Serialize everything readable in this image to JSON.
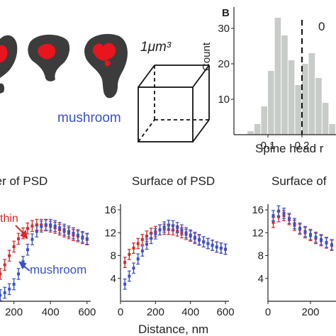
{
  "panel_label": "B",
  "cube_label": "1μm³",
  "mushroom_label": "mushroom",
  "thin_label": "thin",
  "mushroom_label_2": "mushroom",
  "colors": {
    "thin": "#d42a2a",
    "mushroom": "#3a52c8",
    "hist_bar": "#c8ccc8",
    "spine": "#3c3c3c",
    "psd": "#e8141e"
  },
  "chart_data": [
    {
      "type": "bar",
      "title": "",
      "xlabel": "Spine head r",
      "ylabel": "Count",
      "xlim": [
        0,
        0.3
      ],
      "ylim": [
        0,
        36
      ],
      "x_ticks": [
        0.1,
        0.2
      ],
      "y_ticks": [
        10,
        20,
        30
      ],
      "bin_width": 0.02,
      "bin_starts": [
        0.04,
        0.06,
        0.08,
        0.1,
        0.12,
        0.14,
        0.16,
        0.18,
        0.2,
        0.22,
        0.24,
        0.26,
        0.28
      ],
      "values": [
        1,
        3,
        8,
        18,
        33,
        28,
        21,
        14,
        20,
        23,
        16,
        9,
        3
      ],
      "threshold_x": 0.2,
      "threshold_text": "0"
    },
    {
      "type": "line",
      "title": "enter of PSD",
      "xlabel": "",
      "ylabel": "",
      "xlim": [
        0,
        620
      ],
      "ylim": [
        0,
        16
      ],
      "x_ticks": [
        200,
        400,
        600
      ],
      "y_ticks": [],
      "x": [
        100,
        125,
        150,
        175,
        200,
        225,
        250,
        275,
        300,
        325,
        350,
        375,
        400,
        425,
        450,
        475,
        500,
        525,
        550,
        575,
        600
      ],
      "series": [
        {
          "name": "thin",
          "values": [
            3.0,
            4.5,
            6.0,
            7.5,
            9.0,
            10.3,
            11.2,
            12.0,
            12.4,
            12.6,
            12.6,
            12.5,
            12.3,
            12.1,
            11.8,
            11.5,
            11.2,
            10.9,
            10.7,
            10.4,
            10.2
          ]
        },
        {
          "name": "mushroom",
          "values": [
            0.6,
            1.0,
            1.4,
            2.0,
            2.8,
            4.5,
            6.5,
            8.5,
            10.2,
            11.5,
            12.3,
            12.6,
            12.6,
            12.4,
            12.1,
            11.8,
            11.5,
            11.2,
            10.9,
            10.6,
            10.3
          ]
        }
      ]
    },
    {
      "type": "line",
      "title": "Surface of PSD",
      "xlabel": "Distance, nm",
      "ylabel": "",
      "xlim": [
        0,
        620
      ],
      "ylim": [
        0,
        17
      ],
      "x_ticks": [
        0,
        200,
        400,
        600
      ],
      "y_ticks": [
        0,
        4,
        8,
        12,
        16
      ],
      "x": [
        25,
        50,
        75,
        100,
        125,
        150,
        175,
        200,
        225,
        250,
        275,
        300,
        325,
        350,
        375,
        400,
        425,
        450,
        475,
        500,
        525,
        550,
        575,
        600
      ],
      "series": [
        {
          "name": "thin",
          "values": [
            6.8,
            8.2,
            9.3,
            10.1,
            10.8,
            11.4,
            11.9,
            12.2,
            12.5,
            12.6,
            12.6,
            12.5,
            12.3,
            12.0,
            11.7,
            11.4,
            11.0,
            10.7,
            10.4,
            10.1,
            9.8,
            9.5,
            9.3,
            9.1
          ]
        },
        {
          "name": "mushroom",
          "values": [
            3.0,
            4.4,
            5.8,
            7.4,
            8.8,
            10.0,
            11.0,
            11.8,
            12.5,
            13.0,
            13.3,
            13.2,
            12.9,
            12.5,
            12.0,
            11.6,
            11.2,
            10.8,
            10.4,
            10.1,
            9.8,
            9.5,
            9.3,
            9.1
          ]
        }
      ]
    },
    {
      "type": "line",
      "title": "Surface of",
      "xlabel": "",
      "ylabel": "",
      "xlim": [
        0,
        320
      ],
      "ylim": [
        0,
        17
      ],
      "x_ticks": [
        0,
        200
      ],
      "y_ticks": [
        4,
        8,
        12,
        16
      ],
      "x": [
        25,
        50,
        75,
        100,
        125,
        150,
        175,
        200,
        225,
        250,
        275,
        300
      ],
      "series": [
        {
          "name": "thin",
          "values": [
            13.8,
            14.8,
            15.0,
            14.3,
            13.3,
            12.6,
            12.0,
            11.5,
            11.0,
            10.6,
            10.2,
            9.8
          ]
        },
        {
          "name": "mushroom",
          "values": [
            15.0,
            15.8,
            15.4,
            14.5,
            13.6,
            12.8,
            12.2,
            11.7,
            11.2,
            10.8,
            10.3,
            9.9
          ]
        }
      ]
    }
  ]
}
